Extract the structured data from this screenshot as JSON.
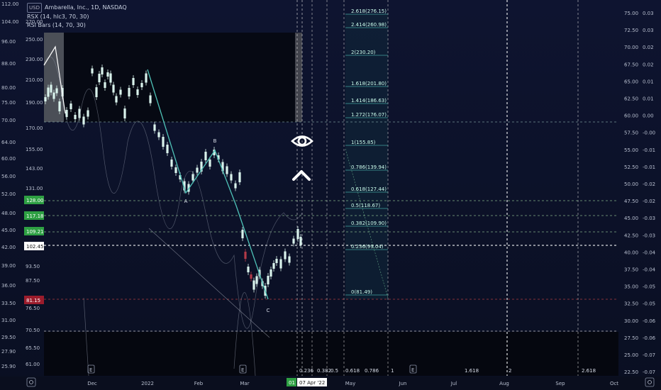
{
  "legend": {
    "currency": "USD",
    "title": "Ambarella, Inc., 1D, NASDAQ",
    "indicator1": "RSX (14, hlc3, 70, 30)",
    "indicator2": "RSI Bars (14, 70, 30)"
  },
  "colors": {
    "background": "#0b1023",
    "teal": "#4fc3b8",
    "bull": "#d9f2ec",
    "bear": "#b23a48",
    "gridline": "#d8d8c8",
    "price_tag": "#2ea043"
  },
  "left_axis_outer": [
    "112.00",
    "104.00",
    "96.00",
    "88.00",
    "80.00",
    "75.00",
    "70.00",
    "64.00",
    "60.00",
    "56.00",
    "52.00",
    "48.00",
    "45.00",
    "42.00",
    "39.00",
    "36.00",
    "33.50",
    "31.00",
    "29.50",
    "27.90",
    "25.90"
  ],
  "left_axis_inner": [
    "270.00",
    "250.00",
    "230.00",
    "210.00",
    "190.00",
    "170.00",
    "155.00",
    "143.00",
    "131.00",
    "93.50",
    "87.50",
    "76.50",
    "70.50",
    "65.50",
    "61.00"
  ],
  "left_tags": [
    {
      "text": "128.00",
      "kind": "green"
    },
    {
      "text": "117.18",
      "kind": "green"
    },
    {
      "text": "109.21",
      "kind": "green"
    },
    {
      "text": "102.45",
      "kind": "white"
    },
    {
      "text": "81.15",
      "kind": "red"
    }
  ],
  "right_axis_a": [
    "75.00",
    "72.50",
    "70.00",
    "67.50",
    "65.00",
    "62.50",
    "60.00",
    "57.50",
    "55.00",
    "52.50",
    "50.00",
    "47.50",
    "45.00",
    "42.50",
    "40.00",
    "37.50",
    "35.00",
    "32.50",
    "30.00",
    "27.50",
    "25.00",
    "22.50"
  ],
  "right_axis_b": [
    "0.03",
    "0.03",
    "0.02",
    "0.02",
    "0.01",
    "0.01",
    "0.00",
    "-0.00",
    "-0.01",
    "-0.01",
    "-0.02",
    "-0.02",
    "-0.03",
    "-0.03",
    "-0.04",
    "-0.04",
    "-0.05",
    "-0.05",
    "-0.06",
    "-0.06",
    "-0.07",
    "-0.07"
  ],
  "fib_levels": [
    {
      "label": "2.618(276.15)"
    },
    {
      "label": "2.414(260.98)"
    },
    {
      "label": "2(230.20)"
    },
    {
      "label": "1.618(201.80)"
    },
    {
      "label": "1.414(186.63)"
    },
    {
      "label": "1.272(176.07)"
    },
    {
      "label": "1(155.85)"
    },
    {
      "label": "0.786(139.94)"
    },
    {
      "label": "0.618(127.44)"
    },
    {
      "label": "0.5(118.67)"
    },
    {
      "label": "0.382(109.90)"
    },
    {
      "label": "0.236(99.04)"
    },
    {
      "label": "0(81.49)"
    }
  ],
  "wave_labels": [
    "A",
    "B",
    "C"
  ],
  "time_fib_labels": [
    "0.236",
    "0.382",
    "0.5",
    "0.618",
    "0.786",
    "1",
    "1.618",
    "2",
    "2.618"
  ],
  "time_axis": [
    "Dec",
    "2022",
    "Feb",
    "Mar",
    "May",
    "Jun",
    "Jul",
    "Aug",
    "Sep",
    "Oct"
  ],
  "time_cursor": {
    "day": "01",
    "date": "07 Apr '22"
  },
  "markers": [
    "E",
    "E",
    "E"
  ]
}
